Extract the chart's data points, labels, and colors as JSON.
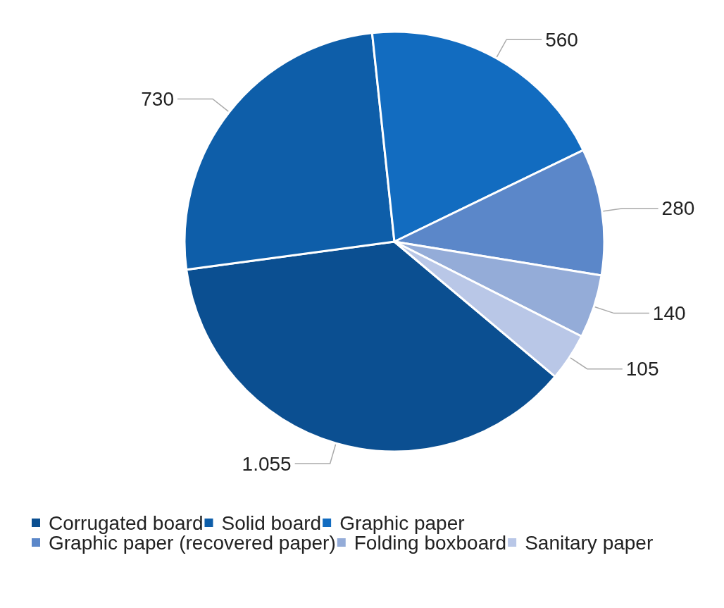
{
  "chart_data": {
    "type": "pie",
    "categories": [
      "Corrugated board",
      "Solid board",
      "Graphic paper",
      "Graphic paper (recovered paper)",
      "Folding boxboard",
      "Sanitary paper"
    ],
    "values": [
      1055,
      730,
      560,
      280,
      140,
      105
    ],
    "value_labels": [
      "1.055",
      "730",
      "560",
      "280",
      "140",
      "105"
    ],
    "colors": [
      "#0b4f91",
      "#0e5ea9",
      "#126cc0",
      "#5b87c9",
      "#94acd8",
      "#b9c7e7"
    ],
    "legend": "bottom"
  }
}
